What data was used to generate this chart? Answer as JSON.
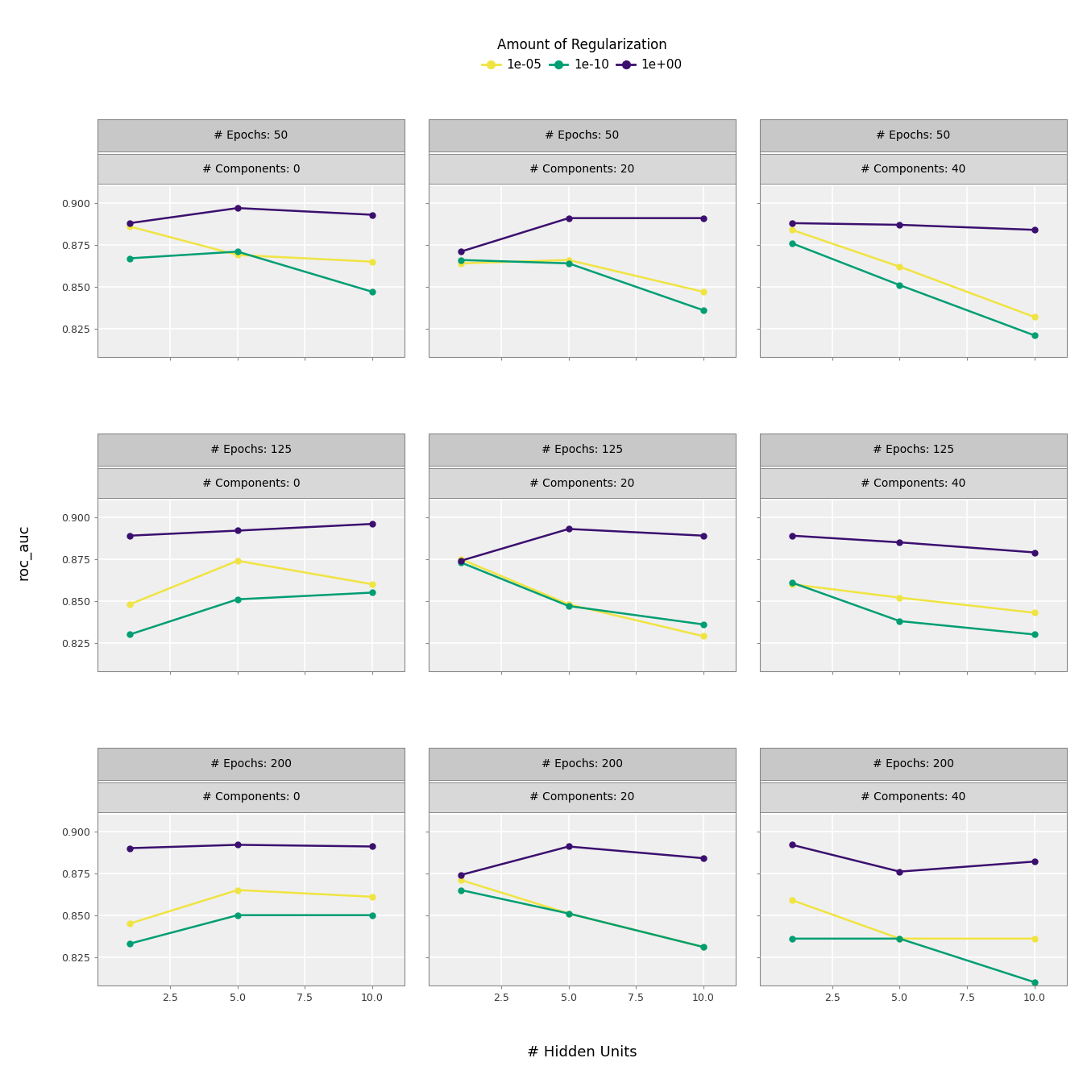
{
  "title": "Amount of Regularization",
  "xlabel": "# Hidden Units",
  "ylabel": "roc_auc",
  "hidden_units": [
    1,
    5,
    10
  ],
  "regularization_labels": [
    "1e-05",
    "1e-10",
    "1e+00"
  ],
  "reg_colors": [
    "#f0e442",
    "#009E73",
    "#3B0F6F"
  ],
  "epochs": [
    50,
    125,
    200
  ],
  "components": [
    0,
    20,
    40
  ],
  "data": {
    "50_0": {
      "1e-05": [
        0.886,
        0.869,
        0.865
      ],
      "1e-10": [
        0.867,
        0.871,
        0.847
      ],
      "1e+00": [
        0.888,
        0.897,
        0.893
      ]
    },
    "50_20": {
      "1e-05": [
        0.864,
        0.866,
        0.847
      ],
      "1e-10": [
        0.866,
        0.864,
        0.836
      ],
      "1e+00": [
        0.871,
        0.891,
        0.891
      ]
    },
    "50_40": {
      "1e-05": [
        0.884,
        0.862,
        0.832
      ],
      "1e-10": [
        0.876,
        0.851,
        0.821
      ],
      "1e+00": [
        0.888,
        0.887,
        0.884
      ]
    },
    "125_0": {
      "1e-05": [
        0.848,
        0.874,
        0.86
      ],
      "1e-10": [
        0.83,
        0.851,
        0.855
      ],
      "1e+00": [
        0.889,
        0.892,
        0.896
      ]
    },
    "125_20": {
      "1e-05": [
        0.875,
        0.848,
        0.829
      ],
      "1e-10": [
        0.873,
        0.847,
        0.836
      ],
      "1e+00": [
        0.874,
        0.893,
        0.889
      ]
    },
    "125_40": {
      "1e-05": [
        0.86,
        0.852,
        0.843
      ],
      "1e-10": [
        0.861,
        0.838,
        0.83
      ],
      "1e+00": [
        0.889,
        0.885,
        0.879
      ]
    },
    "200_0": {
      "1e-05": [
        0.845,
        0.865,
        0.861
      ],
      "1e-10": [
        0.833,
        0.85,
        0.85
      ],
      "1e+00": [
        0.89,
        0.892,
        0.891
      ]
    },
    "200_20": {
      "1e-05": [
        0.871,
        0.851,
        0.831
      ],
      "1e-10": [
        0.865,
        0.851,
        0.831
      ],
      "1e+00": [
        0.874,
        0.891,
        0.884
      ]
    },
    "200_40": {
      "1e-05": [
        0.859,
        0.836,
        0.836
      ],
      "1e-10": [
        0.836,
        0.836,
        0.81
      ],
      "1e+00": [
        0.892,
        0.876,
        0.882
      ]
    }
  },
  "ylim": [
    0.808,
    0.91
  ],
  "yticks": [
    0.825,
    0.85,
    0.875,
    0.9
  ],
  "strip_top_color": "#c8c8c8",
  "strip_sub_color": "#d8d8d8",
  "strip_border_color": "#888888",
  "plot_bg": "#efefef",
  "grid_color": "#ffffff",
  "marker_size": 5,
  "line_width": 1.8
}
